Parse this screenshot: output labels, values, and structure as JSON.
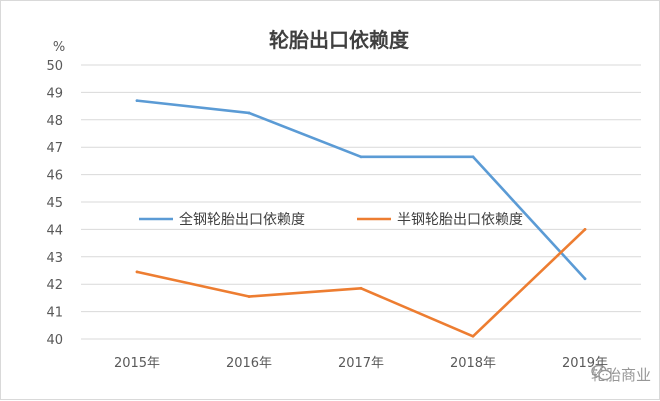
{
  "chart_data": {
    "type": "line",
    "title": "轮胎出口依赖度",
    "ylabel": "%",
    "xlabel": "",
    "categories": [
      "2015年",
      "2016年",
      "2017年",
      "2018年",
      "2019年"
    ],
    "ylim": [
      40,
      50
    ],
    "yticks": [
      40,
      41,
      42,
      43,
      44,
      45,
      46,
      47,
      48,
      49,
      50
    ],
    "grid": true,
    "legend_position": "inside-center",
    "series": [
      {
        "name": "全钢轮胎出口依赖度",
        "color": "#5b9bd5",
        "values": [
          48.7,
          48.25,
          46.65,
          46.65,
          42.2
        ]
      },
      {
        "name": "半钢轮胎出口依赖度",
        "color": "#ed7d31",
        "values": [
          42.45,
          41.55,
          41.85,
          40.1,
          44.0
        ]
      }
    ]
  },
  "watermark": {
    "text": "轮胎商业",
    "icon": "wechat-icon"
  }
}
